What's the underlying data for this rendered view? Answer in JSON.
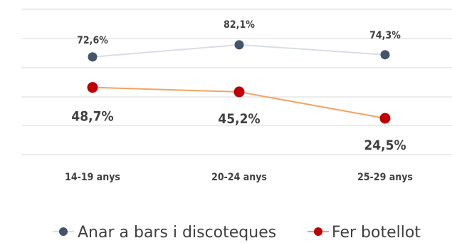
{
  "chart_data": {
    "type": "line",
    "categories": [
      "14-19 anys",
      "20-24 anys",
      "25-29 anys"
    ],
    "series": [
      {
        "name": "Anar a bars i discoteques",
        "values": [
          72.6,
          82.1,
          74.3
        ],
        "labels": [
          "72,6%",
          "82,1%",
          "74,3%"
        ],
        "color": "#44546a",
        "line_color": "#d9dce8"
      },
      {
        "name": "Fer botellot",
        "values": [
          48.7,
          45.2,
          24.5
        ],
        "labels": [
          "48,7%",
          "45,2%",
          "24,5%"
        ],
        "color": "#c00000",
        "line_color": "#f4a261"
      }
    ],
    "grid": true,
    "legend_position": "bottom"
  }
}
